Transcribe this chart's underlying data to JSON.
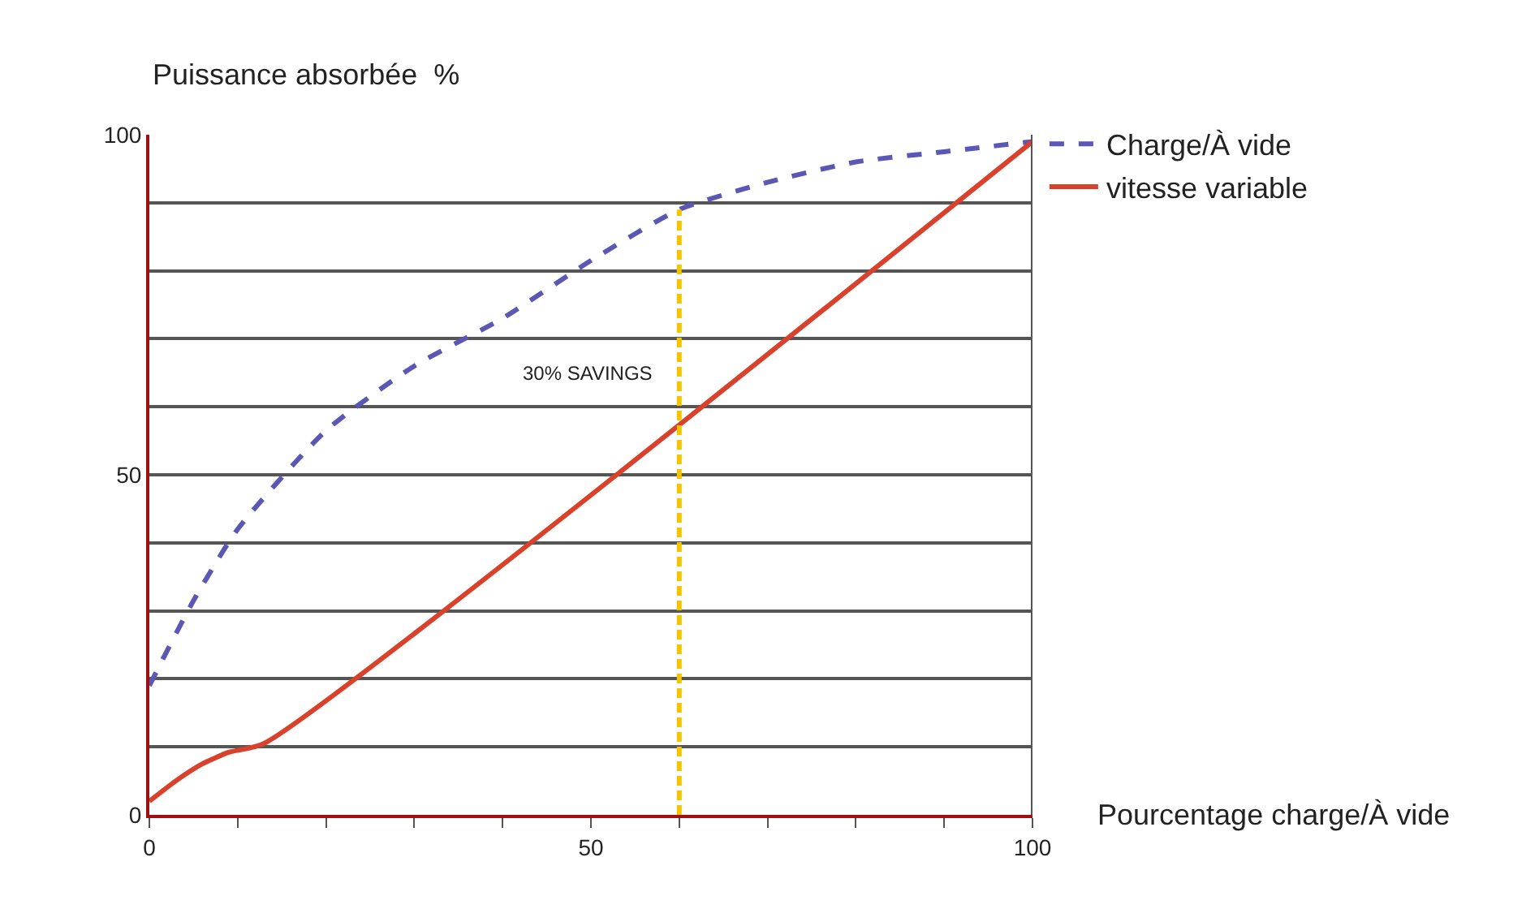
{
  "chart_data": {
    "type": "line",
    "ylabel": "Puissance absorbée  %",
    "xlabel": "Pourcentage charge/À vide",
    "xlim": [
      0,
      100
    ],
    "ylim": [
      0,
      100
    ],
    "xticks": [
      0,
      {
        "value": 10,
        "label": null
      },
      {
        "value": 20,
        "label": null
      },
      {
        "value": 30,
        "label": null
      },
      {
        "value": 40,
        "label": null
      },
      50,
      {
        "value": 60,
        "label": null
      },
      {
        "value": 70,
        "label": null
      },
      {
        "value": 80,
        "label": null
      },
      {
        "value": 90,
        "label": null
      },
      100
    ],
    "yticks": [
      0,
      {
        "value": 10,
        "label": null
      },
      {
        "value": 20,
        "label": null
      },
      {
        "value": 30,
        "label": null
      },
      {
        "value": 40,
        "label": null
      },
      50,
      {
        "value": 60,
        "label": null
      },
      {
        "value": 70,
        "label": null
      },
      {
        "value": 80,
        "label": null
      },
      {
        "value": 90,
        "label": null
      },
      100
    ],
    "grid": "y",
    "legend": "top right",
    "marker": "none",
    "series": [
      {
        "name": "Charge/À vide",
        "color": "#5a58b4",
        "line_style": "dashed",
        "x": [
          0,
          5,
          10,
          20,
          30,
          40,
          50,
          60,
          70,
          80,
          90,
          100
        ],
        "values": [
          19,
          31.5,
          42,
          56.5,
          66,
          73,
          81.5,
          89,
          93,
          96,
          97.5,
          99
        ]
      },
      {
        "name": "vitesse variable",
        "color": "#d9412b",
        "line_style": "solid",
        "x": [
          0,
          3,
          6,
          9,
          13,
          100
        ],
        "values": [
          2,
          5,
          7.5,
          9.2,
          10.5,
          99
        ]
      },
      {
        "color": "#f2c500",
        "line_style": "dashed",
        "x": [
          60,
          60
        ],
        "values": [
          0,
          89
        ]
      }
    ],
    "annotations": [
      "30% SAVINGS"
    ]
  }
}
